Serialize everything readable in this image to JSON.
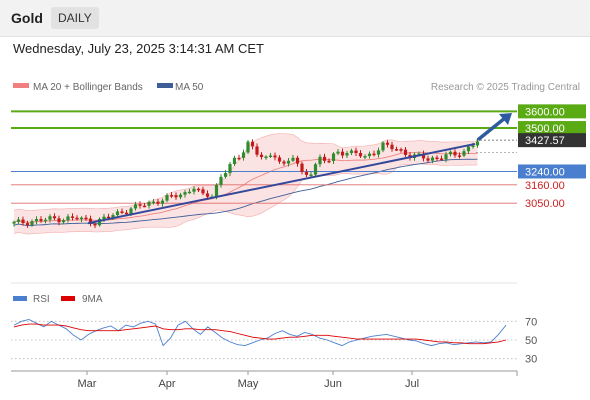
{
  "header": {
    "instrument": "Gold",
    "timeframe": "DAILY",
    "datetime": "Wednesday, July 23, 2025 3:14:31 AM CET"
  },
  "colors": {
    "candle_up": "#2e8b2e",
    "candle_down": "#c41a1a",
    "bollinger": "#f08080",
    "bollinger_fill": "#fbdcdc",
    "ma50": "#3f5e99",
    "trendline": "#33489a",
    "resistance": "#5aaa14",
    "support": "#4a7fd0",
    "minor": "#e06a6a",
    "rsi": "#4a7fd0",
    "rsi_ma": "#dd0000",
    "target_arrow": "#2e5aa0"
  },
  "chart_data": [
    {
      "type": "candlestick",
      "title": "",
      "legend": [
        {
          "name": "MA 20 + Bollinger Bands",
          "color": "#f08080"
        },
        {
          "name": "MA 50",
          "color": "#3f5e99"
        }
      ],
      "watermark": "Research © 2025 Trading Central",
      "x_labels": [
        "Mar",
        "Apr",
        "May",
        "Jun",
        "Jul"
      ],
      "ylim": [
        2590,
        3680
      ],
      "grid": false,
      "current_price": 3427.57,
      "levels": [
        {
          "price": 3600,
          "label": "3600.00",
          "kind": "resistance"
        },
        {
          "price": 3500,
          "label": "3500.00",
          "kind": "resistance"
        },
        {
          "price": 3240,
          "label": "3240.00",
          "kind": "support"
        },
        {
          "price": 3160,
          "label": "3160.00",
          "kind": "minor"
        },
        {
          "price": 3050,
          "label": "3050.00",
          "kind": "minor"
        }
      ],
      "trendline": {
        "from_price": 2930,
        "to_price": 3405
      },
      "target_arrow": {
        "from_price": 3430,
        "to_price": 3590
      }
    },
    {
      "type": "line",
      "title": "",
      "legend": [
        {
          "name": "RSI",
          "color": "#4a7fd0"
        },
        {
          "name": "9MA",
          "color": "#dd0000"
        }
      ],
      "y_ticks": [
        "70",
        "50",
        "30"
      ],
      "ylim": [
        20,
        80
      ],
      "series": [
        {
          "name": "RSI",
          "values": [
            66,
            70,
            72,
            68,
            64,
            70,
            66,
            62,
            55,
            50,
            56,
            60,
            63,
            65,
            60,
            66,
            64,
            68,
            70,
            67,
            44,
            52,
            66,
            70,
            62,
            56,
            64,
            58,
            52,
            48,
            45,
            44,
            47,
            50,
            52,
            57,
            60,
            56,
            54,
            58,
            56,
            52,
            50,
            47,
            44,
            48,
            50,
            52,
            54,
            55,
            56,
            54,
            52,
            50,
            49,
            46,
            44,
            46,
            47,
            45,
            46,
            47,
            48,
            47,
            48,
            56,
            66
          ]
        },
        {
          "name": "9MA",
          "values": [
            64,
            66,
            67,
            67,
            66,
            66,
            66,
            65,
            63,
            61,
            60,
            60,
            60,
            60,
            60,
            61,
            62,
            63,
            64,
            65,
            62,
            61,
            61,
            62,
            62,
            61,
            61,
            61,
            60,
            59,
            57,
            55,
            53,
            52,
            51,
            51,
            52,
            53,
            53,
            54,
            55,
            55,
            55,
            54,
            53,
            52,
            51,
            51,
            51,
            51,
            51,
            51,
            51,
            51,
            51,
            50,
            49,
            48,
            48,
            47,
            47,
            46,
            46,
            46,
            47,
            48,
            50
          ]
        }
      ]
    }
  ]
}
